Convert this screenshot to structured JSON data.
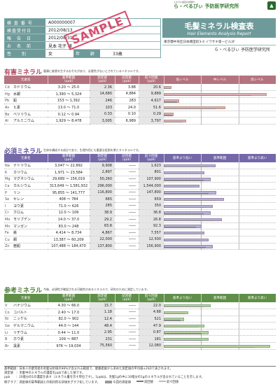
{
  "header": {
    "fields": [
      {
        "label": "検 査 番 号",
        "value": "A000000007"
      },
      {
        "label": "検査受付日",
        "value": "2012/08/13"
      },
      {
        "label": "報　告　日",
        "value": "2012/08/31"
      },
      {
        "label": "お　名　前",
        "value": "見本 花子 様"
      }
    ],
    "gender_label": "性　　別",
    "gender_value": "女",
    "age_label": "年　　齢",
    "age_value": "33歳",
    "stamp_text": "SAMPLE"
  },
  "brand": {
    "small_text": "ミネラル検査の新時代",
    "logo_text": "ら・べるびぃ 予防医学研究所",
    "emblem": "▲"
  },
  "report_title": {
    "jp": "毛髪ミネラル検査表",
    "en": "Hair Elements Analysis Report"
  },
  "address": "東京都中央区日本橋室町3-4 イワサキ第一ビル2F",
  "lab_name": "ら・べるびぃ 予防医学研究所",
  "harmful": {
    "title": "有害ミネラル",
    "desc": "健康に被害を生ずるおそれがあり、必要性がないとされているミネラルです。",
    "columns": [
      "元素名",
      "基準範囲\n（ppb）",
      "測定値\n（ppb）",
      "前回値\n（ppb）",
      "前々回値\n（ppb）",
      "低レベル",
      "中レベル",
      "高レベル"
    ],
    "rows": [
      {
        "sym": "Cd",
        "name": "カドミウム",
        "range": "3.20 ～ 25.0",
        "value": "2.36",
        "prev": "3.88",
        "prev2": "20.6",
        "level": 0.07
      },
      {
        "sym": "Hg",
        "name": "水銀",
        "range": "1,390 ～ 5,324",
        "value": "14,680",
        "prev": "4,884",
        "prev2": "9,889",
        "level": 0.92
      },
      {
        "sym": "Pb",
        "name": "鉛",
        "range": "153 ～ 1,392",
        "value": "246",
        "prev": "283",
        "prev2": "4,617",
        "level": 0.14
      },
      {
        "sym": "As",
        "name": "ヒ素",
        "range": "13.0 ～ 71.0",
        "value": "103",
        "prev": "24.0",
        "prev2": "51.6",
        "level": 0.55
      },
      {
        "sym": "Be",
        "name": "ベリリウム",
        "range": "0.12 ～ 0.94",
        "value": "0.33",
        "prev": "0.10",
        "prev2": "0.29",
        "level": 0.09
      },
      {
        "sym": "Al",
        "name": "アルミニウム",
        "range": "1,929 ～ 8,478",
        "value": "3,005",
        "prev": "6,989",
        "prev2": "3,797",
        "level": 0.2
      }
    ]
  },
  "essential": {
    "title": "必須ミネラル",
    "desc": "生体を構成する成分であり、生理作用にも重要な役割を果たすミネラルです。",
    "columns": [
      "元素名",
      "基準範囲\n（ppb）",
      "測定値\n（ppb）",
      "前回値\n（ppb）",
      "前々回値\n（ppb）",
      "基準より低い",
      "基準範囲",
      "基準より高い"
    ],
    "rows": [
      {
        "sym": "Na",
        "name": "ナトリウム",
        "range": "3,047 ～ 22,892",
        "value": "9,908",
        "prev": "――",
        "prev2": "1,623",
        "level": 0.46
      },
      {
        "sym": "K",
        "name": "カリウム",
        "range": "1,971 ～ 23,584",
        "value": "2,897",
        "prev": "――",
        "prev2": "801",
        "level": 0.36
      },
      {
        "sym": "Mg",
        "name": "マグネシウム",
        "range": "29,689 ～ 156,019",
        "value": "50,260",
        "prev": "――",
        "prev2": "107,900",
        "level": 0.42
      },
      {
        "sym": "Ca",
        "name": "カルシウム",
        "range": "313,649 ～ 1,581,932",
        "value": "296,000",
        "prev": "――",
        "prev2": "1,544,000",
        "level": 0.32
      },
      {
        "sym": "P",
        "name": "リン",
        "range": "95,855 ～ 141,777",
        "value": "116,800",
        "prev": "――",
        "prev2": "147,800",
        "level": 0.47
      },
      {
        "sym": "Se",
        "name": "セレン",
        "range": "408 ～ 784",
        "value": "665",
        "prev": "――",
        "prev2": "659",
        "level": 0.54
      },
      {
        "sym": "I",
        "name": "ヨウ素",
        "range": "71.0 ～ 626",
        "value": "285",
        "prev": "――",
        "prev2": "350",
        "level": 0.44
      },
      {
        "sym": "Cr",
        "name": "クロム",
        "range": "12.0 ～ 106",
        "value": "38.9",
        "prev": "――",
        "prev2": "36.8",
        "level": 0.42
      },
      {
        "sym": "Mo",
        "name": "モリブデン",
        "range": "14.0 ～ 37.0",
        "value": "29.2",
        "prev": "――",
        "prev2": "26.8",
        "level": 0.52
      },
      {
        "sym": "Mn",
        "name": "マンガン",
        "range": "83.0 ～ 248",
        "value": "83.8",
        "prev": "――",
        "prev2": "92.3",
        "level": 0.34
      },
      {
        "sym": "Fe",
        "name": "鉄",
        "range": "4,414 ～ 8,734",
        "value": "4,867",
        "prev": "――",
        "prev2": "7,557",
        "level": 0.36
      },
      {
        "sym": "Cu",
        "name": "銅",
        "range": "13,387 ～ 60,209",
        "value": "22,000",
        "prev": "――",
        "prev2": "12,500",
        "level": 0.4
      },
      {
        "sym": "Zn",
        "name": "亜鉛",
        "range": "107,488 ～ 184,470",
        "value": "137,800",
        "prev": "――",
        "prev2": "156,900",
        "level": 0.44
      }
    ]
  },
  "reference": {
    "title": "参考ミネラル",
    "desc": "今後、必須性が確認される可能性のあるミネラルで、研究のために測定しています。",
    "columns": [
      "元素名",
      "基準範囲\n（ppb）",
      "測定値\n（ppb）",
      "前回値\n（ppb）",
      "前々回値\n（ppb）",
      "基準より低い",
      "基準範囲",
      "基準より高い"
    ],
    "rows": [
      {
        "sym": "V",
        "name": "バナジウム",
        "range": "4.30 ～ 66.0",
        "value": "15.7",
        "prev": "――",
        "prev2": "22.0",
        "level": 0.42
      },
      {
        "sym": "Co",
        "name": "コバルト",
        "range": "2.40 ～ 17.0",
        "value": "1.18",
        "prev": "――",
        "prev2": "4.68",
        "level": 0.22
      },
      {
        "sym": "Ni",
        "name": "ニッケル",
        "range": "82.0 ～ 902",
        "value": "12.4",
        "prev": "――",
        "prev2": "521",
        "level": 0.18
      },
      {
        "sym": "Ge",
        "name": "ゲルマニウム",
        "range": "44.0 ～ 144",
        "value": "48.4",
        "prev": "――",
        "prev2": "47.9",
        "level": 0.36
      },
      {
        "sym": "Li",
        "name": "リチウム",
        "range": "0.44 ～ 11.0",
        "value": "2.95",
        "prev": "――",
        "prev2": "0.87",
        "level": 0.4
      },
      {
        "sym": "B",
        "name": "ホウ素",
        "range": "109 ～ 887",
        "value": "231",
        "prev": "――",
        "prev2": "181",
        "level": 0.4
      },
      {
        "sym": "Br",
        "name": "臭素",
        "range": "976 ～ 19,034",
        "value": "75,560",
        "prev": "――",
        "prev2": "12,080",
        "level": 0.95
      }
    ]
  },
  "footnotes": {
    "line1": "基準範囲：日本人の健常者の毛髪分析値の98%が含まれる範囲で、健康者群から求めた測定値の平均値±2SDで表されます。",
    "line2": "測定値　：毛髪中のミネラルの濃度をppbで表した値です。",
    "line3": "ppb　　：10億分の1の濃度を表す（ミネラル量を示す単位です）。1ppbは、毛髪1gの中に10億分の1gのミネラルが含まれていることを示します。",
    "line4": "棒グラフ：測定値の基準範囲との相対的な評価をグラフ化しています。",
    "legend": [
      "今回の測定値",
      "前回値",
      "前々回値"
    ]
  }
}
